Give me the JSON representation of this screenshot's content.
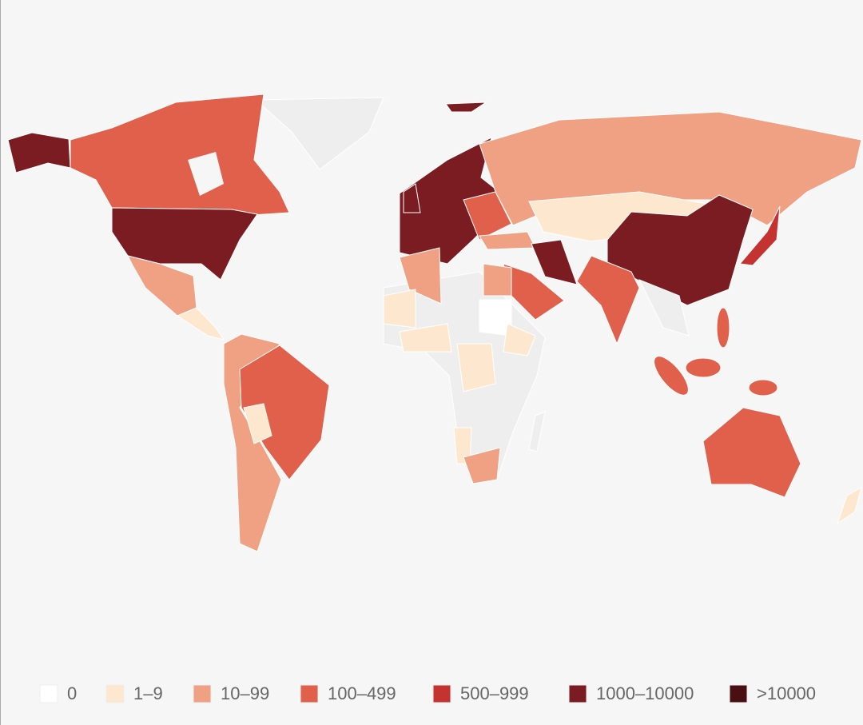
{
  "legend": {
    "items": [
      {
        "label": "0",
        "color": "#ffffff"
      },
      {
        "label": "1–9",
        "color": "#fde8cf"
      },
      {
        "label": "10–99",
        "color": "#f0a083"
      },
      {
        "label": "100–499",
        "color": "#e0604c"
      },
      {
        "label": "500–999",
        "color": "#c53330"
      },
      {
        "label": "1000–10000",
        "color": "#7b1c22"
      },
      {
        "label": ">10000",
        "color": "#4a0f12"
      }
    ]
  }
}
